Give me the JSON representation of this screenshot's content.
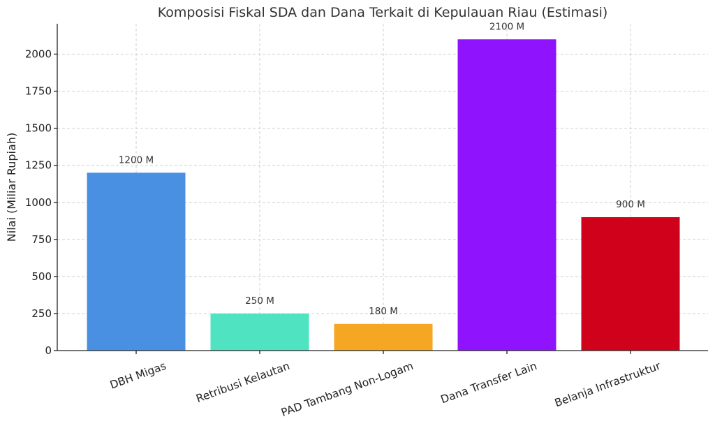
{
  "chart_data": {
    "type": "bar",
    "title": "Komposisi Fiskal SDA dan Dana Terkait di Kepulauan Riau (Estimasi)",
    "xlabel": "",
    "ylabel": "Nilai (Miliar Rupiah)",
    "categories": [
      "DBH Migas",
      "Retribusi Kelautan",
      "PAD Tambang Non-Logam",
      "Dana Transfer Lain",
      "Belanja Infrastruktur"
    ],
    "values": [
      1200,
      250,
      180,
      2100,
      900
    ],
    "data_labels": [
      "1200 M",
      "250 M",
      "180 M",
      "2100 M",
      "900 M"
    ],
    "colors": [
      "#4a90e2",
      "#50e3c2",
      "#f5a623",
      "#9013fe",
      "#d0021b"
    ],
    "ylim": [
      0,
      2205
    ],
    "yticks": [
      0,
      250,
      500,
      750,
      1000,
      1250,
      1500,
      1750,
      2000
    ],
    "grid": true
  }
}
